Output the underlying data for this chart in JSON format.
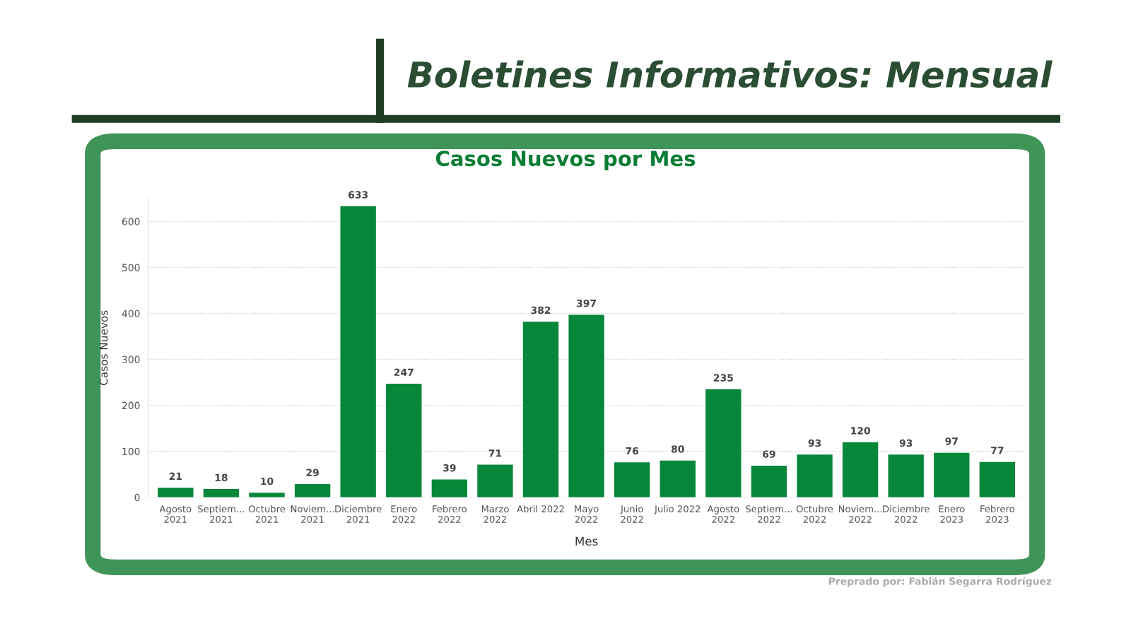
{
  "chart_data": {
    "type": "bar",
    "title": "Boletines Informativos: Mensual",
    "subtitle": "Casos Nuevos por Mes",
    "xlabel": "Mes",
    "ylabel": "Casos Nuevos",
    "categories": [
      "Agosto\n2021",
      "Septiem...\n2021",
      "Octubre\n2021",
      "Noviem...\n2021",
      "Diciembre\n2021",
      "Enero\n2022",
      "Febrero\n2022",
      "Marzo\n2022",
      "Abril 2022",
      "Mayo\n2022",
      "Junio\n2022",
      "Julio 2022",
      "Agosto\n2022",
      "Septiem...\n2022",
      "Octubre\n2022",
      "Noviem...\n2022",
      "Diciembre\n2022",
      "Enero\n2023",
      "Febrero\n2023"
    ],
    "values": [
      21,
      18,
      10,
      29,
      633,
      247,
      39,
      71,
      382,
      397,
      76,
      80,
      235,
      69,
      93,
      120,
      93,
      97,
      77
    ],
    "color": "#07873a",
    "data_labels": true,
    "yticks": [
      0,
      100,
      200,
      300,
      400,
      500,
      600
    ],
    "ylim": [
      0,
      650
    ],
    "grid": "y",
    "annotations": [
      "Preprado por: Fabián Segarra Rodríguez"
    ]
  }
}
